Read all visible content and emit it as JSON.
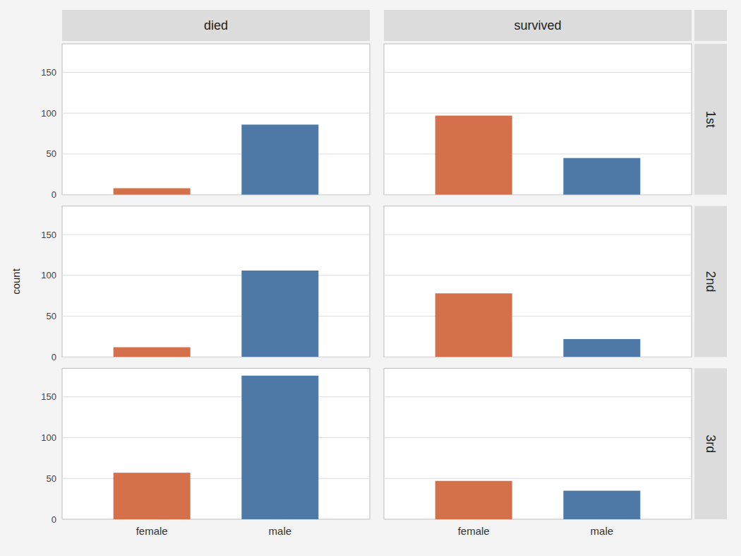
{
  "chart_data": [
    {
      "type": "bar",
      "title": "died",
      "categories": [
        null,
        null
      ],
      "values": [
        8,
        86
      ],
      "colors": [
        "#d4714b",
        "#4e79a6"
      ],
      "ylim": [
        0,
        185
      ],
      "yticks": [
        0,
        50,
        100,
        150
      ],
      "grid": true,
      "tick_labels": "y"
    },
    {
      "type": "bar",
      "title": "survived",
      "subtitle": "1st",
      "categories": [
        null,
        null
      ],
      "values": [
        97,
        45
      ],
      "colors": [
        "#d4714b",
        "#4e79a6"
      ],
      "ylim": [
        0,
        185
      ],
      "yticks": [
        0,
        50,
        100,
        150
      ],
      "grid": true,
      "tick_labels": false
    },
    {
      "type": "bar",
      "ylabel": "count",
      "categories": [
        null,
        null
      ],
      "values": [
        12,
        106
      ],
      "colors": [
        "#d4714b",
        "#4e79a6"
      ],
      "ylim": [
        0,
        185
      ],
      "yticks": [
        0,
        50,
        100,
        150
      ],
      "grid": true,
      "tick_labels": "y"
    },
    {
      "type": "bar",
      "subtitle": "2nd",
      "categories": [
        null,
        null
      ],
      "values": [
        78,
        22
      ],
      "colors": [
        "#d4714b",
        "#4e79a6"
      ],
      "ylim": [
        0,
        185
      ],
      "yticks": [
        0,
        50,
        100,
        150
      ],
      "grid": true,
      "tick_labels": false
    },
    {
      "type": "bar",
      "categories": [
        "female",
        "male"
      ],
      "values": [
        57,
        176
      ],
      "colors": [
        "#d4714b",
        "#4e79a6"
      ],
      "ylim": [
        0,
        185
      ],
      "yticks": [
        0,
        50,
        100,
        150
      ],
      "grid": true
    },
    {
      "type": "bar",
      "subtitle": "3rd",
      "categories": [
        "female",
        "male"
      ],
      "values": [
        47,
        35
      ],
      "colors": [
        "#d4714b",
        "#4e79a6"
      ],
      "ylim": [
        0,
        185
      ],
      "yticks": [
        0,
        50,
        100,
        150
      ],
      "grid": true,
      "tick_labels": "x"
    }
  ]
}
